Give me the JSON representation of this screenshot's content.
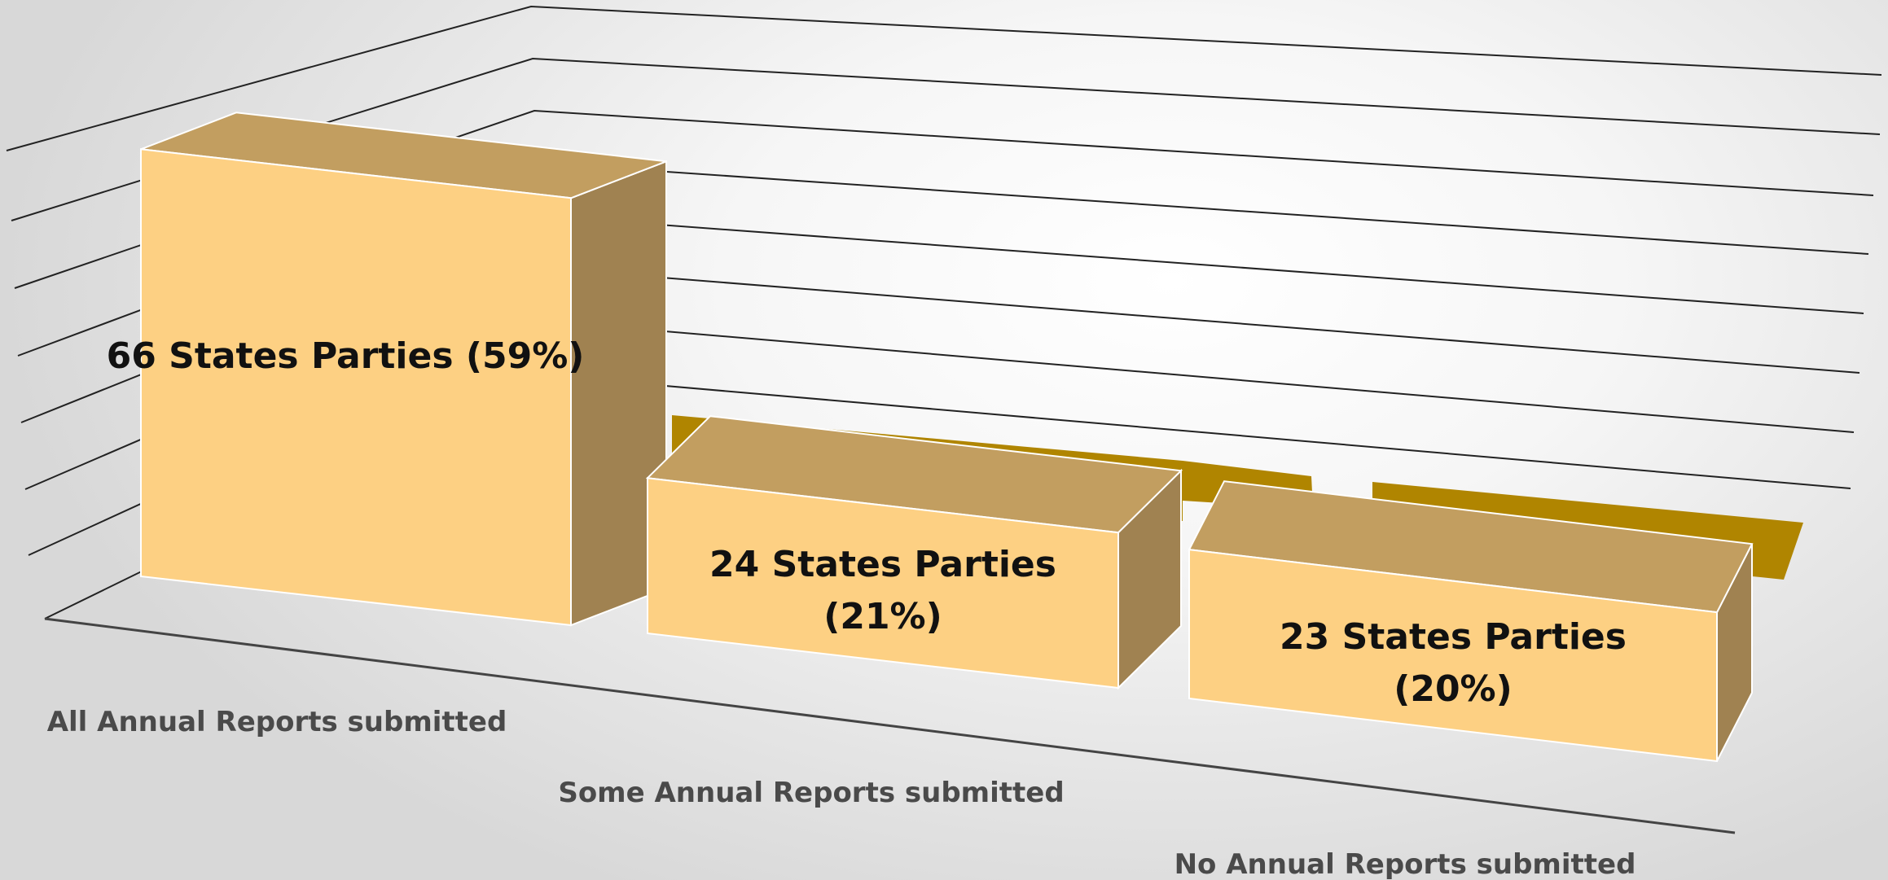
{
  "chart_data": {
    "type": "bar",
    "style": "3d-column",
    "categories": [
      "All Annual Reports submitted",
      "Some Annual Reports submitted",
      "No Annual Reports submitted"
    ],
    "values": [
      66,
      24,
      23
    ],
    "percents": [
      59,
      21,
      20
    ],
    "data_labels": [
      [
        "66 States Parties (59%)"
      ],
      [
        "24 States Parties",
        "(21%)"
      ],
      [
        "23 States Parties",
        "(20%)"
      ]
    ],
    "ylim": [
      0,
      80
    ],
    "gridlines": true,
    "legend": "none",
    "colors": {
      "front": "#fdd083",
      "top": "#c29e60",
      "side": "#a08251",
      "backdrop_bar": "#b08500",
      "gridline": "#222222",
      "category_text": "#4a4a4a",
      "label_text": "#111111"
    }
  }
}
